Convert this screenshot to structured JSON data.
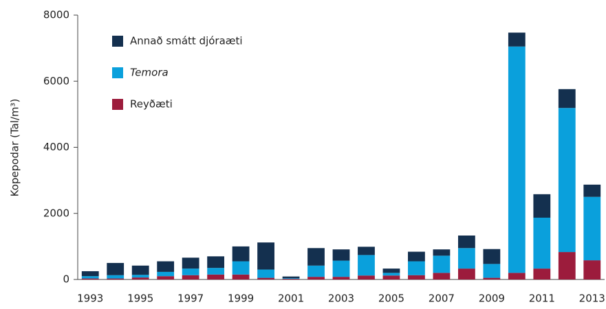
{
  "chart_data": {
    "type": "stacked_bar",
    "y_label": "Kopepodar (Tal/m³)",
    "categories": [
      "1993",
      null,
      "1995",
      null,
      "1997",
      null,
      "1999",
      null,
      "2001",
      null,
      "2003",
      null,
      "2005",
      null,
      "2007",
      null,
      "2009",
      null,
      "2011",
      null,
      "2013"
    ],
    "series": [
      {
        "name": "Reyðæti",
        "color": "#9c1c3c",
        "values": [
          30,
          30,
          60,
          100,
          130,
          150,
          150,
          50,
          20,
          80,
          80,
          120,
          120,
          130,
          200,
          330,
          50,
          200,
          330,
          830,
          580
        ]
      },
      {
        "name": "Temora",
        "color": "#0aa0dc",
        "values": [
          70,
          100,
          80,
          130,
          200,
          200,
          400,
          250,
          20,
          340,
          490,
          620,
          80,
          420,
          520,
          620,
          420,
          6850,
          1540,
          4360,
          1920
        ]
      },
      {
        "name": "Annað smátt djóraæti",
        "color": "#14304f",
        "values": [
          150,
          370,
          280,
          320,
          330,
          350,
          450,
          820,
          50,
          530,
          340,
          250,
          130,
          290,
          190,
          380,
          450,
          420,
          710,
          570,
          370
        ]
      }
    ],
    "ylim": [
      0,
      8000
    ],
    "yticks": [
      0,
      2000,
      4000,
      6000,
      8000
    ],
    "grid": false
  }
}
